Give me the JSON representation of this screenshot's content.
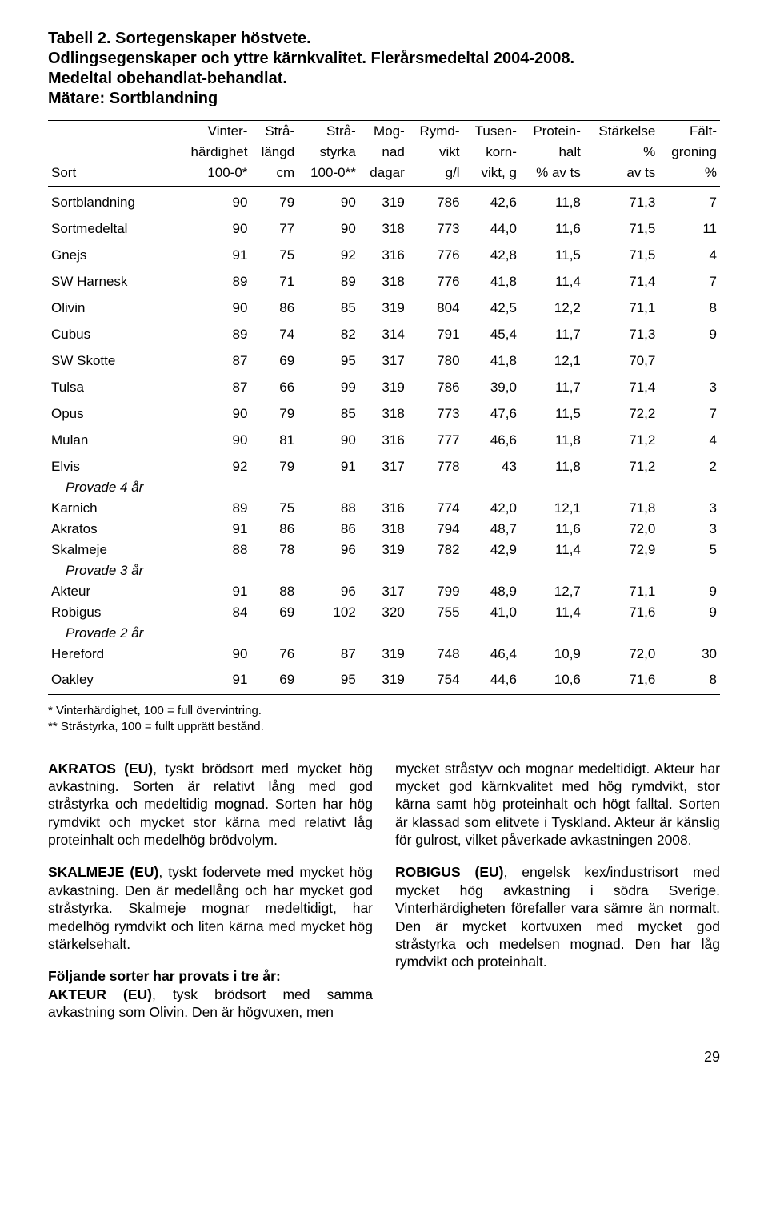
{
  "title": {
    "line1": "Tabell 2. Sortegenskaper höstvete.",
    "line2": "Odlingsegenskaper och yttre kärnkvalitet. Flerårsmedeltal 2004-2008.",
    "line3": "Medeltal obehandlat-behandlat.",
    "line4": "Mätare: Sortblandning"
  },
  "header": {
    "row1": [
      "",
      "Vinter-",
      "Strå-",
      "Strå-",
      "Mog-",
      "Rymd-",
      "Tusen-",
      "Protein-",
      "Stärkelse",
      "Fält-"
    ],
    "row2": [
      "",
      "härdighet",
      "längd",
      "styrka",
      "nad",
      "vikt",
      "korn-",
      "halt",
      "%",
      "groning"
    ],
    "row3": [
      "Sort",
      "100-0*",
      "cm",
      "100-0**",
      "dagar",
      "g/l",
      "vikt, g",
      "% av ts",
      "av ts",
      "%"
    ]
  },
  "rows": [
    {
      "name": "Sortblandning",
      "v": [
        90,
        79,
        90,
        319,
        786,
        "42,6",
        "11,8",
        "71,3",
        7
      ]
    },
    {
      "name": "Sortmedeltal",
      "v": [
        90,
        77,
        90,
        318,
        773,
        "44,0",
        "11,6",
        "71,5",
        11
      ]
    },
    {
      "name": "Gnejs",
      "v": [
        91,
        75,
        92,
        316,
        776,
        "42,8",
        "11,5",
        "71,5",
        4
      ]
    },
    {
      "name": "SW Harnesk",
      "v": [
        89,
        71,
        89,
        318,
        776,
        "41,8",
        "11,4",
        "71,4",
        7
      ]
    },
    {
      "name": "Olivin",
      "v": [
        90,
        86,
        85,
        319,
        804,
        "42,5",
        "12,2",
        "71,1",
        8
      ]
    },
    {
      "name": "Cubus",
      "v": [
        89,
        74,
        82,
        314,
        791,
        "45,4",
        "11,7",
        "71,3",
        9
      ]
    },
    {
      "name": "SW Skotte",
      "v": [
        87,
        69,
        95,
        317,
        780,
        "41,8",
        "12,1",
        "70,7",
        ""
      ]
    },
    {
      "name": "Tulsa",
      "v": [
        87,
        66,
        99,
        319,
        786,
        "39,0",
        "11,7",
        "71,4",
        3
      ]
    },
    {
      "name": "Opus",
      "v": [
        90,
        79,
        85,
        318,
        773,
        "47,6",
        "11,5",
        "72,2",
        7
      ]
    },
    {
      "name": "Mulan",
      "v": [
        90,
        81,
        90,
        316,
        777,
        "46,6",
        "11,8",
        "71,2",
        4
      ]
    },
    {
      "name": "Elvis",
      "v": [
        92,
        79,
        91,
        317,
        778,
        "43",
        "11,8",
        "71,2",
        2
      ]
    }
  ],
  "section4": "Provade 4 år",
  "rows4": [
    {
      "name": "Karnich",
      "v": [
        89,
        75,
        88,
        316,
        774,
        "42,0",
        "12,1",
        "71,8",
        3
      ]
    },
    {
      "name": "Akratos",
      "v": [
        91,
        86,
        86,
        318,
        794,
        "48,7",
        "11,6",
        "72,0",
        3
      ]
    },
    {
      "name": "Skalmeje",
      "v": [
        88,
        78,
        96,
        319,
        782,
        "42,9",
        "11,4",
        "72,9",
        5
      ]
    }
  ],
  "section3": "Provade 3 år",
  "rows3": [
    {
      "name": "Akteur",
      "v": [
        91,
        88,
        96,
        317,
        799,
        "48,9",
        "12,7",
        "71,1",
        9
      ]
    },
    {
      "name": "Robigus",
      "v": [
        84,
        69,
        102,
        320,
        755,
        "41,0",
        "11,4",
        "71,6",
        9
      ]
    }
  ],
  "section2": "Provade 2 år",
  "rows2": [
    {
      "name": "Hereford",
      "v": [
        90,
        76,
        87,
        319,
        748,
        "46,4",
        "10,9",
        "72,0",
        30
      ]
    },
    {
      "name": "Oakley",
      "v": [
        91,
        69,
        95,
        319,
        754,
        "44,6",
        "10,6",
        "71,6",
        8
      ]
    }
  ],
  "footnotes": {
    "f1": "*   Vinterhärdighet, 100 = full övervintring.",
    "f2": "**  Stråstyrka, 100 = fullt upprätt bestånd."
  },
  "body": {
    "left": {
      "p1a": "AKRATOS (EU)",
      "p1b": ", tyskt brödsort med mycket hög avkastning. Sorten är relativt lång med god stråstyrka och medeltidig mognad. Sorten har hög rymdvikt och mycket stor kärna med relativt låg proteinhalt och medelhög bröd­volym.",
      "p2a": "SKALMEJE (EU)",
      "p2b": ", tyskt fodervete med mycket hög avkastning. Den är medellång och har mycket god stråstyrka. Skalmeje mognar medeltidigt, har medelhög rymdvikt och liten kärna med mycket hög stärkelsehalt.",
      "p3a": "Följande sorter har provats i tre år:",
      "p3b": "AKTEUR (EU)",
      "p3c": ", tysk brödsort med samma avkastning som Olivin. Den är högvuxen, men"
    },
    "right": {
      "p1": "mycket stråstyv och mognar medeltidigt. Akteur har mycket god kärnkvalitet med hög rymdvikt, stor kärna samt hög proteinhalt och högt falltal. Sorten är klassad som elitvete i Tyskland. Akteur är känslig för gulrost, vilket påverkade avkastningen 2008.",
      "p2a": "ROBIGUS (EU)",
      "p2b": ", engelsk kex/industrisort med mycket hög avkastning i södra Sverige. Vinterhärdigheten förefaller vara sämre än normalt. Den är mycket kortvuxen med mycket god stråstyrka och medelsen mog­nad. Den har låg rymdvikt och proteinhalt."
    }
  },
  "pagenum": "29"
}
